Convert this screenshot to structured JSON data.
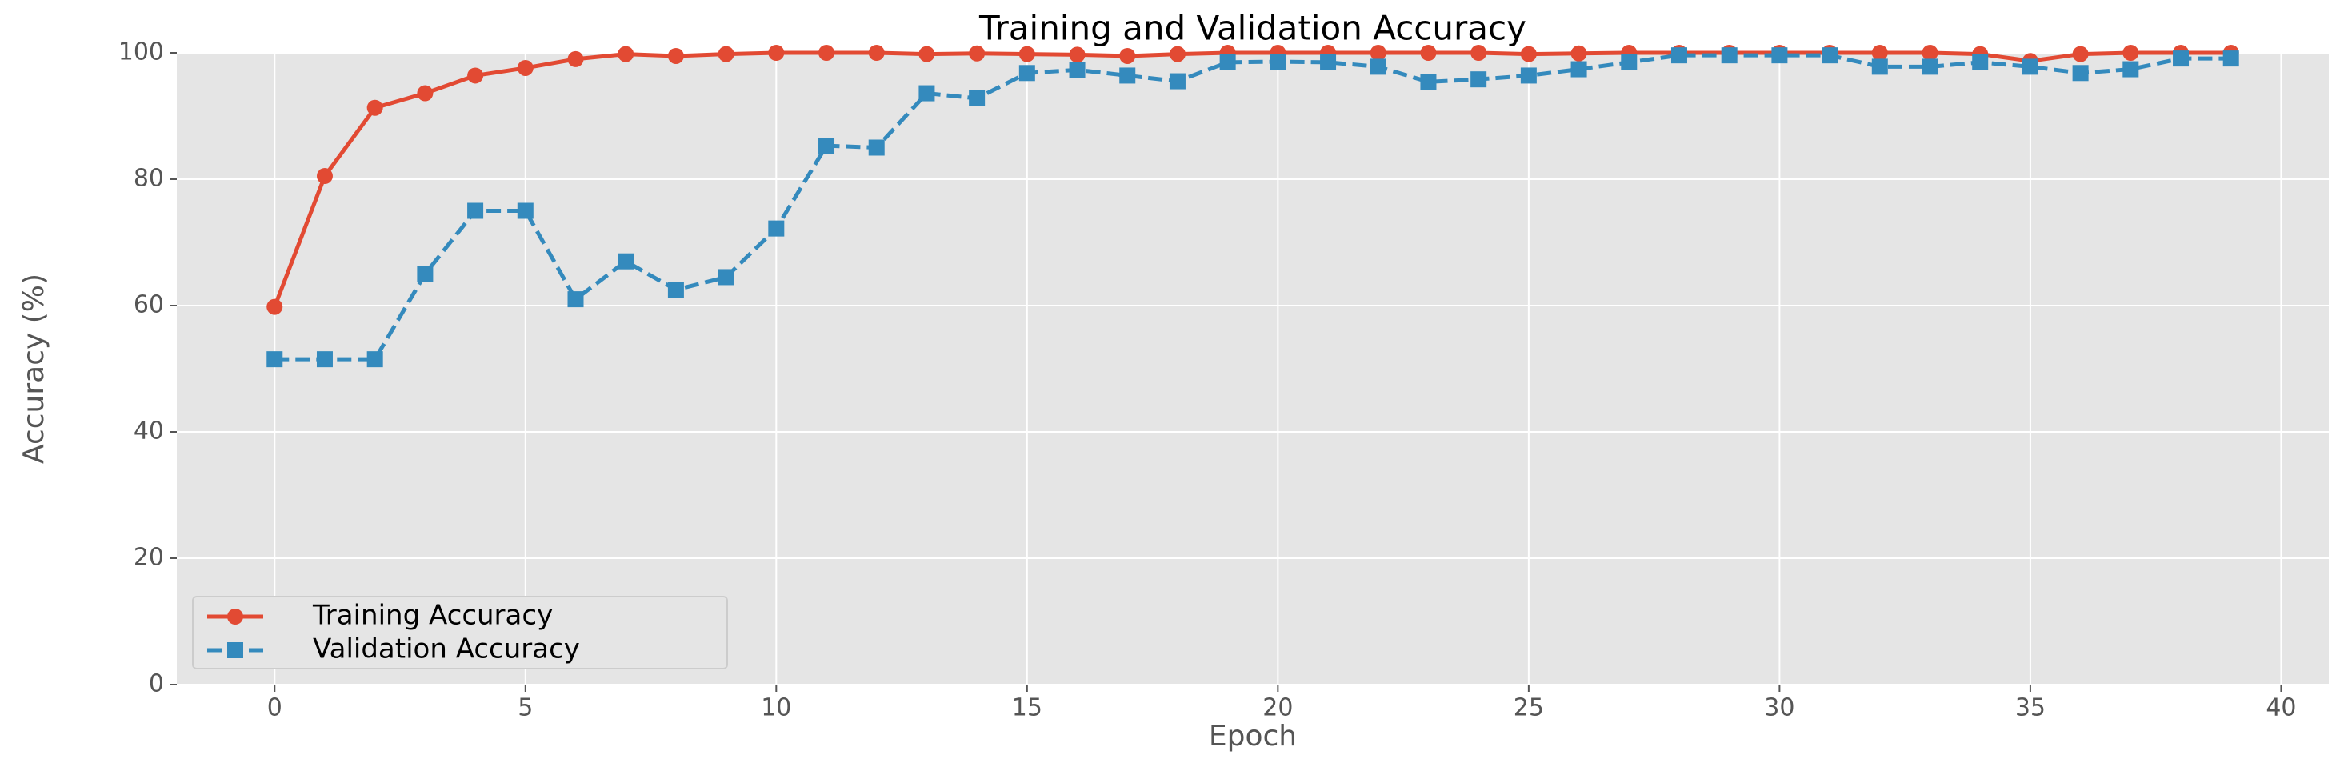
{
  "chart_data": {
    "type": "line",
    "title": "Training and Validation Accuracy",
    "xlabel": "Epoch",
    "ylabel": "Accuracy (%)",
    "x": [
      0,
      1,
      2,
      3,
      4,
      5,
      6,
      7,
      8,
      9,
      10,
      11,
      12,
      13,
      14,
      15,
      16,
      17,
      18,
      19,
      20,
      21,
      22,
      23,
      24,
      25,
      26,
      27,
      28,
      29,
      30,
      31,
      32,
      33,
      34,
      35,
      36,
      37,
      38,
      39
    ],
    "series": [
      {
        "name": "Training Accuracy",
        "color": "#e24a33",
        "dash": false,
        "marker": "circle",
        "values": [
          59.8,
          80.5,
          91.3,
          93.6,
          96.4,
          97.6,
          99.0,
          99.8,
          99.5,
          99.8,
          100,
          100,
          100,
          99.8,
          99.9,
          99.8,
          99.7,
          99.5,
          99.8,
          100,
          100,
          100,
          100,
          100,
          100,
          99.8,
          99.9,
          100,
          100,
          100,
          100,
          100,
          100,
          100,
          99.8,
          98.7,
          99.8,
          100,
          100,
          100
        ]
      },
      {
        "name": "Validation Accuracy",
        "color": "#348abd",
        "dash": true,
        "marker": "square",
        "values": [
          51.5,
          51.5,
          51.5,
          65,
          75,
          75,
          61,
          67,
          62.5,
          64.5,
          72.2,
          85.3,
          85,
          93.6,
          92.8,
          96.8,
          97.3,
          96.4,
          95.5,
          98.5,
          98.6,
          98.5,
          97.8,
          95.4,
          95.8,
          96.4,
          97.4,
          98.5,
          99.6,
          99.6,
          99.6,
          99.6,
          97.8,
          97.8,
          98.5,
          97.8,
          96.8,
          97.4,
          99.1,
          99.1
        ]
      }
    ],
    "xlim": [
      -1.95,
      40.95
    ],
    "xticks": [
      0,
      5,
      10,
      15,
      20,
      25,
      30,
      35,
      40
    ],
    "ylim": [
      0,
      100
    ],
    "yticks": [
      0,
      20,
      40,
      60,
      80,
      100
    ],
    "grid": true,
    "legend": "lower left"
  }
}
